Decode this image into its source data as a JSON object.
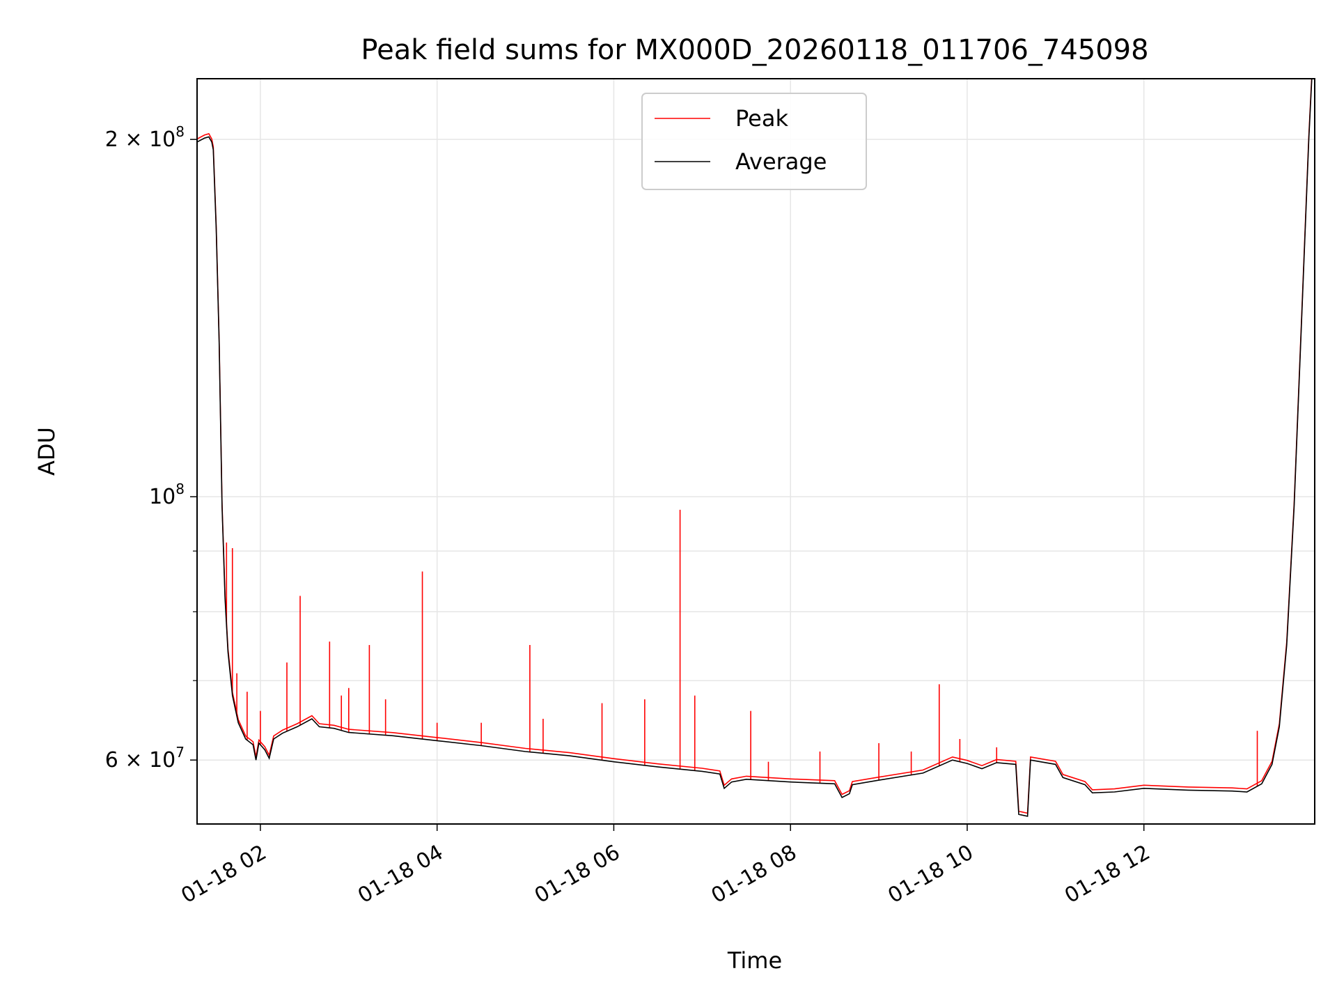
{
  "chart_data": {
    "type": "line",
    "title": "Peak field sums for MX000D_20260118_011706_745098",
    "xlabel": "Time",
    "ylabel": "ADU",
    "yscale": "log",
    "ylim": [
      53000000,
      225000000
    ],
    "xlim": [
      "2026-01-18 01:17",
      "2026-01-18 13:56"
    ],
    "grid": true,
    "legend_position": "top-center",
    "x_ticks": [
      {
        "value": "2026-01-18 02:00",
        "label": "01-18 02"
      },
      {
        "value": "2026-01-18 04:00",
        "label": "01-18 04"
      },
      {
        "value": "2026-01-18 06:00",
        "label": "01-18 06"
      },
      {
        "value": "2026-01-18 08:00",
        "label": "01-18 08"
      },
      {
        "value": "2026-01-18 10:00",
        "label": "01-18 10"
      },
      {
        "value": "2026-01-18 12:00",
        "label": "01-18 12"
      }
    ],
    "y_ticks": [
      {
        "value": 60000000,
        "label": "6 × 10",
        "exp": "7"
      },
      {
        "value": 100000000,
        "label": "10",
        "exp": "8"
      },
      {
        "value": 200000000,
        "label": "2 × 10",
        "exp": "8"
      }
    ],
    "y_minor_ticks": [
      70000000,
      80000000,
      90000000
    ],
    "series": [
      {
        "name": "Average",
        "color": "#000000",
        "points": [
          [
            "2026-01-18 01:17",
            199000000
          ],
          [
            "2026-01-18 01:22",
            200500000
          ],
          [
            "2026-01-18 01:25",
            201000000
          ],
          [
            "2026-01-18 01:27",
            199000000
          ],
          [
            "2026-01-18 01:28",
            196000000
          ],
          [
            "2026-01-18 01:30",
            168000000
          ],
          [
            "2026-01-18 01:32",
            135000000
          ],
          [
            "2026-01-18 01:34",
            98000000
          ],
          [
            "2026-01-18 01:36",
            82000000
          ],
          [
            "2026-01-18 01:38",
            74000000
          ],
          [
            "2026-01-18 01:41",
            68000000
          ],
          [
            "2026-01-18 01:45",
            64500000
          ],
          [
            "2026-01-18 01:50",
            62500000
          ],
          [
            "2026-01-18 01:55",
            61800000
          ],
          [
            "2026-01-18 01:57",
            60000000
          ],
          [
            "2026-01-18 01:59",
            62000000
          ],
          [
            "2026-01-18 02:03",
            61200000
          ],
          [
            "2026-01-18 02:06",
            60200000
          ],
          [
            "2026-01-18 02:09",
            62500000
          ],
          [
            "2026-01-18 02:15",
            63200000
          ],
          [
            "2026-01-18 02:25",
            64000000
          ],
          [
            "2026-01-18 02:35",
            65000000
          ],
          [
            "2026-01-18 02:40",
            64000000
          ],
          [
            "2026-01-18 02:50",
            63800000
          ],
          [
            "2026-01-18 03:00",
            63300000
          ],
          [
            "2026-01-18 03:30",
            62900000
          ],
          [
            "2026-01-18 04:00",
            62300000
          ],
          [
            "2026-01-18 04:30",
            61700000
          ],
          [
            "2026-01-18 05:00",
            61000000
          ],
          [
            "2026-01-18 05:30",
            60500000
          ],
          [
            "2026-01-18 06:00",
            59800000
          ],
          [
            "2026-01-18 06:30",
            59200000
          ],
          [
            "2026-01-18 07:00",
            58700000
          ],
          [
            "2026-01-18 07:12",
            58400000
          ],
          [
            "2026-01-18 07:15",
            56800000
          ],
          [
            "2026-01-18 07:20",
            57500000
          ],
          [
            "2026-01-18 07:30",
            57800000
          ],
          [
            "2026-01-18 08:00",
            57500000
          ],
          [
            "2026-01-18 08:30",
            57300000
          ],
          [
            "2026-01-18 08:35",
            55800000
          ],
          [
            "2026-01-18 08:40",
            56200000
          ],
          [
            "2026-01-18 08:42",
            57200000
          ],
          [
            "2026-01-18 09:00",
            57700000
          ],
          [
            "2026-01-18 09:30",
            58500000
          ],
          [
            "2026-01-18 09:50",
            60000000
          ],
          [
            "2026-01-18 10:00",
            59600000
          ],
          [
            "2026-01-18 10:10",
            59000000
          ],
          [
            "2026-01-18 10:20",
            59700000
          ],
          [
            "2026-01-18 10:33",
            59500000
          ],
          [
            "2026-01-18 10:35",
            54000000
          ],
          [
            "2026-01-18 10:41",
            53800000
          ],
          [
            "2026-01-18 10:43",
            60000000
          ],
          [
            "2026-01-18 11:00",
            59500000
          ],
          [
            "2026-01-18 11:05",
            58000000
          ],
          [
            "2026-01-18 11:20",
            57200000
          ],
          [
            "2026-01-18 11:25",
            56300000
          ],
          [
            "2026-01-18 11:40",
            56400000
          ],
          [
            "2026-01-18 12:00",
            56800000
          ],
          [
            "2026-01-18 12:30",
            56600000
          ],
          [
            "2026-01-18 13:00",
            56500000
          ],
          [
            "2026-01-18 13:10",
            56400000
          ],
          [
            "2026-01-18 13:20",
            57300000
          ],
          [
            "2026-01-18 13:27",
            59500000
          ],
          [
            "2026-01-18 13:32",
            64000000
          ],
          [
            "2026-01-18 13:37",
            75000000
          ],
          [
            "2026-01-18 13:42",
            98000000
          ],
          [
            "2026-01-18 13:47",
            140000000
          ],
          [
            "2026-01-18 13:52",
            200000000
          ],
          [
            "2026-01-18 13:54",
            225000000
          ]
        ]
      },
      {
        "name": "Peak",
        "color": "#ff0000",
        "spikes": [
          [
            "2026-01-18 01:37",
            91500000
          ],
          [
            "2026-01-18 01:41",
            90500000
          ],
          [
            "2026-01-18 01:44",
            71000000
          ],
          [
            "2026-01-18 01:51",
            68500000
          ],
          [
            "2026-01-18 02:00",
            66000000
          ],
          [
            "2026-01-18 02:18",
            72500000
          ],
          [
            "2026-01-18 02:27",
            82500000
          ],
          [
            "2026-01-18 02:47",
            75500000
          ],
          [
            "2026-01-18 02:55",
            68000000
          ],
          [
            "2026-01-18 03:00",
            69000000
          ],
          [
            "2026-01-18 03:14",
            75000000
          ],
          [
            "2026-01-18 03:25",
            67500000
          ],
          [
            "2026-01-18 03:50",
            86500000
          ],
          [
            "2026-01-18 04:00",
            64500000
          ],
          [
            "2026-01-18 04:30",
            64500000
          ],
          [
            "2026-01-18 05:03",
            75000000
          ],
          [
            "2026-01-18 05:12",
            65000000
          ],
          [
            "2026-01-18 05:52",
            67000000
          ],
          [
            "2026-01-18 06:21",
            67500000
          ],
          [
            "2026-01-18 06:45",
            97500000
          ],
          [
            "2026-01-18 06:55",
            68000000
          ],
          [
            "2026-01-18 07:33",
            66000000
          ],
          [
            "2026-01-18 07:45",
            59800000
          ],
          [
            "2026-01-18 08:20",
            61000000
          ],
          [
            "2026-01-18 09:00",
            62000000
          ],
          [
            "2026-01-18 09:22",
            61000000
          ],
          [
            "2026-01-18 09:41",
            69500000
          ],
          [
            "2026-01-18 09:55",
            62500000
          ],
          [
            "2026-01-18 10:20",
            61500000
          ],
          [
            "2026-01-18 13:17",
            63500000
          ]
        ]
      }
    ]
  }
}
